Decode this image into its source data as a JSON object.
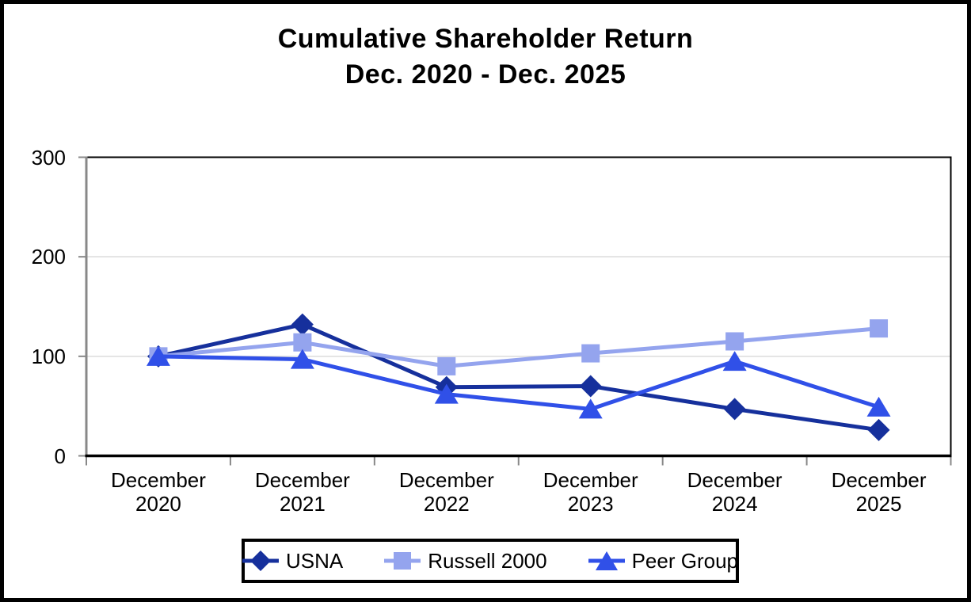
{
  "title": {
    "line1": "Cumulative Shareholder Return",
    "line2": "Dec. 2020 - Dec. 2025"
  },
  "chart_data": {
    "type": "line",
    "title": "Cumulative Shareholder Return",
    "subtitle": "Dec. 2020 - Dec. 2025",
    "categories": [
      "December 2020",
      "December 2021",
      "December 2022",
      "December 2023",
      "December 2024",
      "December 2025"
    ],
    "series": [
      {
        "name": "USNA",
        "marker": "diamond",
        "color": "#16309C",
        "values": [
          100,
          132,
          69,
          70,
          47,
          26
        ]
      },
      {
        "name": "Russell 2000",
        "marker": "square",
        "color": "#94A4EE",
        "values": [
          100,
          114,
          90,
          103,
          115,
          128
        ]
      },
      {
        "name": "Peer Group",
        "marker": "triangle",
        "color": "#3050E8",
        "values": [
          100,
          97,
          62,
          47,
          95,
          49
        ]
      }
    ],
    "yticks": [
      0,
      100,
      200,
      300
    ],
    "ylim": [
      0,
      300
    ],
    "grid": true,
    "legend_position": "bottom",
    "axis_colors": {
      "y_axis": "#888888",
      "x_axis": "#000000",
      "gridline": "#DBDBDB",
      "plot_border": "#000000"
    }
  }
}
